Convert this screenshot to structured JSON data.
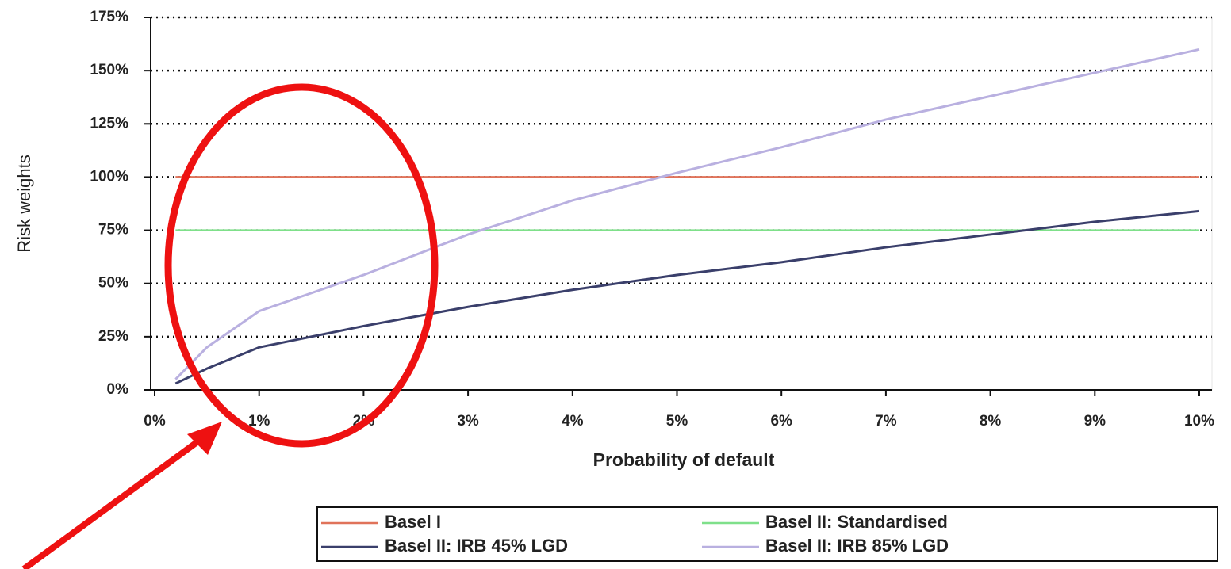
{
  "chart_data": {
    "type": "line",
    "x_label": "Probability of default",
    "y_label": "Risk weights",
    "x": [
      0.2,
      0.5,
      1,
      2,
      3,
      4,
      5,
      6,
      7,
      8,
      9,
      10
    ],
    "series": [
      {
        "name": "Basel I",
        "color": "#e0735a",
        "values": [
          100,
          100,
          100,
          100,
          100,
          100,
          100,
          100,
          100,
          100,
          100,
          100
        ]
      },
      {
        "name": "Basel II: Standardised",
        "color": "#7fe08a",
        "values": [
          75,
          75,
          75,
          75,
          75,
          75,
          75,
          75,
          75,
          75,
          75,
          75
        ]
      },
      {
        "name": "Basel II: IRB 45% LGD",
        "color": "#3a3f6b",
        "values": [
          3,
          10,
          20,
          30,
          39,
          47,
          54,
          60,
          67,
          73,
          79,
          84
        ]
      },
      {
        "name": "Basel II: IRB 85% LGD",
        "color": "#b9b0e0",
        "values": [
          5,
          20,
          37,
          54,
          73,
          89,
          102,
          114,
          127,
          138,
          149,
          160
        ]
      }
    ],
    "xlim": [
      0,
      10
    ],
    "ylim": [
      0,
      175
    ],
    "xticks": [
      {
        "value": 0,
        "label": "0%"
      },
      {
        "value": 1,
        "label": "1%"
      },
      {
        "value": 2,
        "label": "2%"
      },
      {
        "value": 3,
        "label": "3%"
      },
      {
        "value": 4,
        "label": "4%"
      },
      {
        "value": 5,
        "label": "5%"
      },
      {
        "value": 6,
        "label": "6%"
      },
      {
        "value": 7,
        "label": "7%"
      },
      {
        "value": 8,
        "label": "8%"
      },
      {
        "value": 9,
        "label": "9%"
      },
      {
        "value": 10,
        "label": "10%"
      }
    ],
    "yticks": [
      {
        "value": 0,
        "label": "0%"
      },
      {
        "value": 25,
        "label": "25%"
      },
      {
        "value": 50,
        "label": "50%"
      },
      {
        "value": 75,
        "label": "75%"
      },
      {
        "value": 100,
        "label": "100%"
      },
      {
        "value": 125,
        "label": "125%"
      },
      {
        "value": 150,
        "label": "150%"
      },
      {
        "value": 175,
        "label": "175%"
      }
    ],
    "grid": true,
    "legend": "bottom"
  }
}
